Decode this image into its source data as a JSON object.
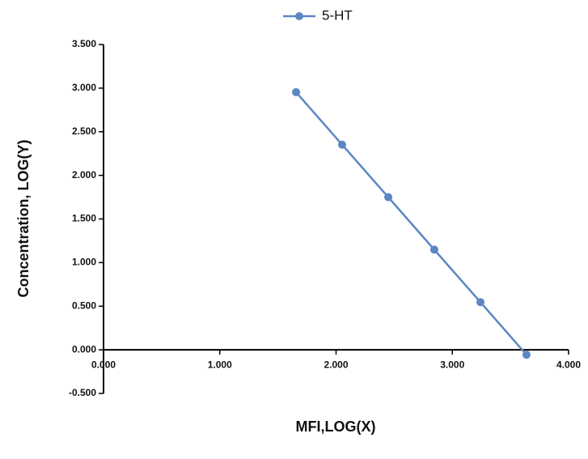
{
  "chart_data": {
    "type": "line",
    "x_label": "MFI,LOG(X)",
    "y_label": "Concentration,  LOG(Y)",
    "series": [
      {
        "name": "5-HT",
        "color": "#5b87c2",
        "x": [
          1.656,
          2.052,
          2.449,
          2.845,
          3.242,
          3.638
        ],
        "values": [
          2.954,
          2.352,
          1.75,
          1.148,
          0.546,
          -0.056
        ]
      }
    ],
    "xlim": [
      0,
      4
    ],
    "xticks": [
      {
        "value": 0,
        "label": "0.000"
      },
      {
        "value": 1,
        "label": "1.000"
      },
      {
        "value": 2,
        "label": "2.000"
      },
      {
        "value": 3,
        "label": "3.000"
      },
      {
        "value": 4,
        "label": "4.000"
      }
    ],
    "ylim": [
      -0.5,
      3.5
    ],
    "yticks": [
      {
        "value": -0.5,
        "label": "-0.500"
      },
      {
        "value": 0,
        "label": "0.000"
      },
      {
        "value": 0.5,
        "label": "0.500"
      },
      {
        "value": 1,
        "label": "1.000"
      },
      {
        "value": 1.5,
        "label": "1.500"
      },
      {
        "value": 2,
        "label": "2.000"
      },
      {
        "value": 2.5,
        "label": "2.500"
      },
      {
        "value": 3,
        "label": "3.000"
      },
      {
        "value": 3.5,
        "label": "3.500"
      }
    ],
    "grid": false,
    "legend": "top"
  }
}
